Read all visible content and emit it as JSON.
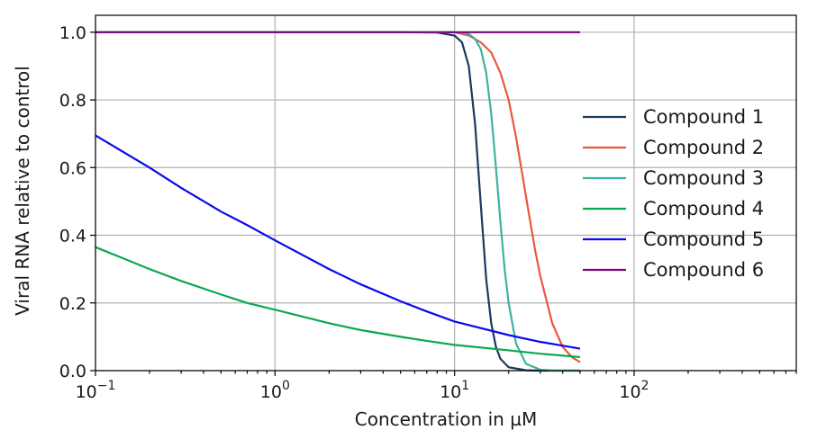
{
  "chart_data": {
    "type": "line",
    "xlabel": "Concentration in µM",
    "ylabel": "Viral RNA relative to control",
    "xscale": "log",
    "xlim": [
      0.1,
      800
    ],
    "ylim": [
      0,
      1.05
    ],
    "x_ticks": [
      {
        "value": 0.1,
        "base": "10",
        "exp": "−1"
      },
      {
        "value": 1,
        "base": "10",
        "exp": "0"
      },
      {
        "value": 10,
        "base": "10",
        "exp": "1"
      },
      {
        "value": 100,
        "base": "10",
        "exp": "2"
      }
    ],
    "y_ticks": [
      "0.0",
      "0.2",
      "0.4",
      "0.6",
      "0.8",
      "1.0"
    ],
    "grid": true,
    "legend_position": "center-right",
    "series": [
      {
        "name": "Compound 1",
        "color": "#1b3a5c",
        "x": [
          0.1,
          1,
          5,
          8,
          10,
          11,
          12,
          13,
          14,
          15,
          16,
          17,
          18,
          20,
          25,
          30,
          50
        ],
        "y": [
          1.0,
          1.0,
          1.0,
          0.999,
          0.99,
          0.97,
          0.9,
          0.73,
          0.49,
          0.27,
          0.14,
          0.07,
          0.035,
          0.01,
          0.001,
          0.0,
          0.0
        ]
      },
      {
        "name": "Compound 2",
        "color": "#e8593c",
        "x": [
          0.1,
          1,
          10,
          12,
          14,
          16,
          18,
          20,
          22,
          24,
          26,
          28,
          30,
          35,
          40,
          45,
          50
        ],
        "y": [
          1.0,
          1.0,
          1.0,
          0.99,
          0.97,
          0.94,
          0.88,
          0.8,
          0.69,
          0.57,
          0.46,
          0.36,
          0.28,
          0.14,
          0.07,
          0.04,
          0.025
        ]
      },
      {
        "name": "Compound 3",
        "color": "#3db39e",
        "x": [
          0.1,
          1,
          10,
          12,
          13,
          14,
          15,
          16,
          17,
          18,
          19,
          20,
          22,
          25,
          30,
          35,
          50
        ],
        "y": [
          1.0,
          1.0,
          1.0,
          0.995,
          0.98,
          0.95,
          0.88,
          0.76,
          0.6,
          0.44,
          0.3,
          0.2,
          0.08,
          0.02,
          0.003,
          0.0,
          0.0
        ]
      },
      {
        "name": "Compound 4",
        "color": "#0aa84f",
        "x": [
          0.1,
          0.2,
          0.3,
          0.5,
          0.7,
          1,
          2,
          3,
          5,
          7,
          10,
          20,
          30,
          50
        ],
        "y": [
          0.365,
          0.3,
          0.265,
          0.225,
          0.2,
          0.18,
          0.14,
          0.12,
          0.1,
          0.088,
          0.076,
          0.06,
          0.05,
          0.04
        ]
      },
      {
        "name": "Compound 5",
        "color": "#0a0aee",
        "x": [
          0.1,
          0.2,
          0.3,
          0.5,
          0.7,
          1,
          2,
          3,
          5,
          7,
          10,
          20,
          30,
          50
        ],
        "y": [
          0.695,
          0.6,
          0.54,
          0.47,
          0.43,
          0.385,
          0.3,
          0.255,
          0.205,
          0.175,
          0.145,
          0.105,
          0.085,
          0.065
        ]
      },
      {
        "name": "Compound 6",
        "color": "#800080",
        "x": [
          0.1,
          1,
          10,
          50
        ],
        "y": [
          1.0,
          1.0,
          1.0,
          1.0
        ]
      }
    ]
  }
}
